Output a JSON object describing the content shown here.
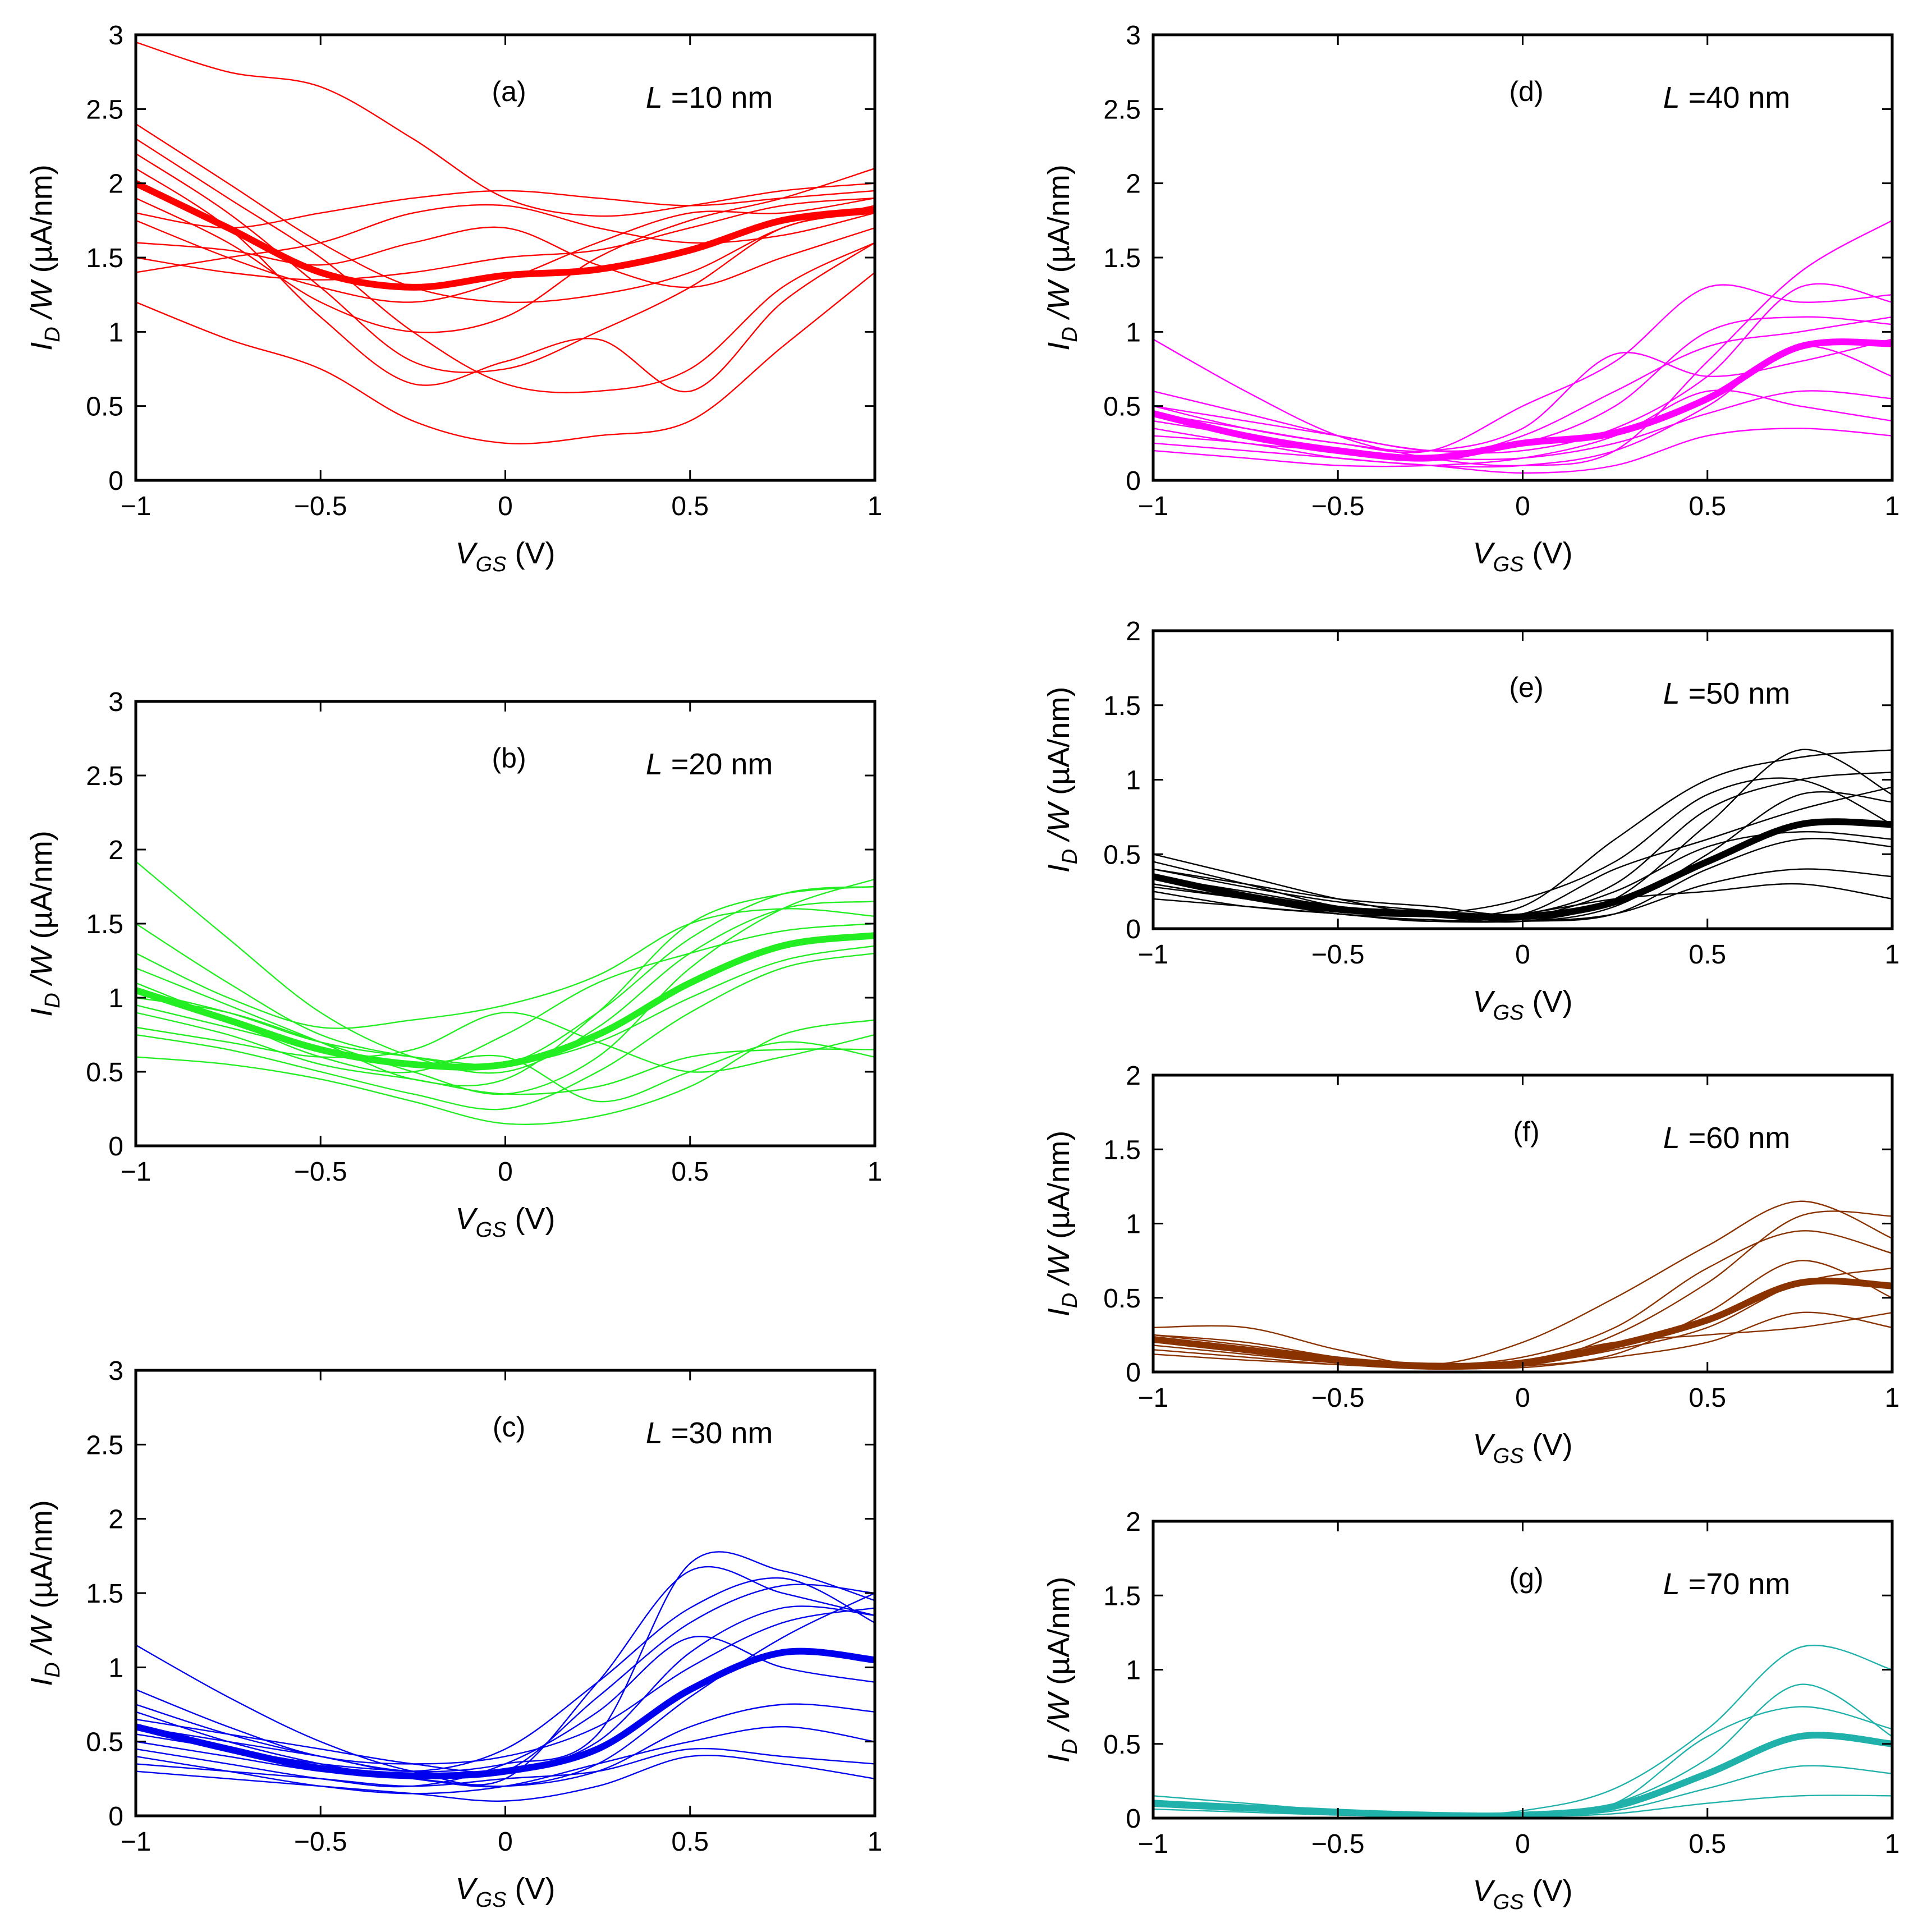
{
  "colors": {
    "a": "#ff0000",
    "b": "#22ee22",
    "c": "#0000ee",
    "d": "#ff00ff",
    "e": "#000000",
    "f": "#8b3300",
    "g": "#20b2aa"
  },
  "chart_data": [
    {
      "id": "a",
      "type": "line",
      "panel_label": "(a)",
      "length_label": "L =10 nm",
      "xlabel": "V_GS (V)",
      "ylabel": "I_D /W (µA/nm)",
      "xlim": [
        -1,
        1
      ],
      "ylim": [
        0,
        3
      ],
      "xticks": [
        "−1",
        "−0.5",
        "0",
        "0.5",
        "1"
      ],
      "yticks": [
        "0",
        "0.5",
        "1",
        "1.5",
        "2",
        "2.5",
        "3"
      ],
      "x": [
        -1,
        -0.75,
        -0.5,
        -0.25,
        0,
        0.25,
        0.5,
        0.75,
        1
      ],
      "mean": [
        2.0,
        1.7,
        1.4,
        1.3,
        1.38,
        1.42,
        1.55,
        1.75,
        1.82
      ],
      "samples": [
        [
          2.95,
          2.75,
          2.65,
          2.3,
          1.9,
          1.78,
          1.85,
          1.95,
          2.0
        ],
        [
          1.2,
          0.95,
          0.75,
          0.4,
          0.25,
          0.3,
          0.4,
          0.9,
          1.4
        ],
        [
          2.3,
          1.9,
          1.5,
          1.0,
          0.65,
          0.6,
          0.75,
          1.3,
          1.6
        ],
        [
          1.8,
          1.7,
          1.8,
          1.9,
          1.95,
          1.9,
          1.85,
          1.9,
          1.95
        ],
        [
          1.5,
          1.4,
          1.35,
          1.4,
          1.5,
          1.55,
          1.7,
          1.85,
          1.9
        ],
        [
          2.2,
          1.8,
          1.3,
          0.8,
          0.75,
          1.0,
          1.3,
          1.7,
          1.8
        ],
        [
          1.4,
          1.5,
          1.6,
          1.8,
          1.85,
          1.7,
          1.6,
          1.65,
          1.8
        ],
        [
          1.9,
          1.6,
          1.2,
          1.0,
          1.1,
          1.5,
          1.75,
          1.9,
          2.1
        ],
        [
          2.4,
          2.0,
          1.6,
          1.3,
          1.2,
          1.25,
          1.4,
          1.7,
          1.85
        ],
        [
          1.6,
          1.55,
          1.45,
          1.6,
          1.7,
          1.45,
          1.3,
          1.5,
          1.7
        ],
        [
          2.1,
          1.7,
          1.1,
          0.65,
          0.8,
          0.95,
          0.6,
          1.2,
          1.6
        ],
        [
          1.75,
          1.5,
          1.3,
          1.2,
          1.35,
          1.6,
          1.8,
          1.8,
          1.9
        ]
      ]
    },
    {
      "id": "b",
      "type": "line",
      "panel_label": "(b)",
      "length_label": "L =20 nm",
      "xlabel": "V_GS (V)",
      "ylabel": "I_D /W (µA/nm)",
      "xlim": [
        -1,
        1
      ],
      "ylim": [
        0,
        3
      ],
      "xticks": [
        "−1",
        "−0.5",
        "0",
        "0.5",
        "1"
      ],
      "yticks": [
        "0",
        "0.5",
        "1",
        "1.5",
        "2",
        "2.5",
        "3"
      ],
      "x": [
        -1,
        -0.75,
        -0.5,
        -0.25,
        0,
        0.25,
        0.5,
        0.75,
        1
      ],
      "mean": [
        1.05,
        0.85,
        0.65,
        0.55,
        0.55,
        0.75,
        1.1,
        1.35,
        1.42
      ],
      "samples": [
        [
          1.92,
          1.4,
          0.9,
          0.6,
          0.5,
          0.8,
          1.3,
          1.6,
          1.65
        ],
        [
          1.5,
          1.1,
          0.75,
          0.6,
          0.55,
          0.9,
          1.4,
          1.7,
          1.75
        ],
        [
          0.6,
          0.55,
          0.45,
          0.3,
          0.15,
          0.2,
          0.4,
          0.75,
          0.85
        ],
        [
          1.0,
          0.9,
          0.7,
          0.5,
          0.35,
          0.6,
          1.2,
          1.6,
          1.8
        ],
        [
          0.8,
          0.7,
          0.6,
          0.65,
          0.9,
          0.7,
          0.5,
          0.6,
          0.75
        ],
        [
          1.2,
          0.95,
          0.7,
          0.45,
          0.45,
          0.9,
          1.5,
          1.7,
          1.75
        ],
        [
          0.9,
          0.75,
          0.55,
          0.45,
          0.35,
          0.4,
          0.6,
          0.65,
          0.65
        ],
        [
          1.1,
          0.85,
          0.6,
          0.5,
          0.75,
          1.1,
          1.3,
          1.45,
          1.5
        ],
        [
          0.75,
          0.65,
          0.5,
          0.35,
          0.25,
          0.5,
          0.9,
          1.2,
          1.3
        ],
        [
          1.3,
          1.0,
          0.8,
          0.85,
          0.95,
          1.15,
          1.5,
          1.6,
          1.55
        ],
        [
          0.95,
          0.8,
          0.65,
          0.55,
          0.6,
          0.3,
          0.5,
          0.7,
          0.6
        ],
        [
          1.05,
          0.9,
          0.7,
          0.6,
          0.55,
          0.7,
          1.0,
          1.25,
          1.35
        ]
      ]
    },
    {
      "id": "c",
      "type": "line",
      "panel_label": "(c)",
      "length_label": "L =30 nm",
      "xlabel": "V_GS (V)",
      "ylabel": "I_D /W (µA/nm)",
      "xlim": [
        -1,
        1
      ],
      "ylim": [
        0,
        3
      ],
      "xticks": [
        "−1",
        "−0.5",
        "0",
        "0.5",
        "1"
      ],
      "yticks": [
        "0",
        "0.5",
        "1",
        "1.5",
        "2",
        "2.5",
        "3"
      ],
      "x": [
        -1,
        -0.75,
        -0.5,
        -0.25,
        0,
        0.25,
        0.5,
        0.75,
        1
      ],
      "mean": [
        0.6,
        0.45,
        0.32,
        0.27,
        0.3,
        0.45,
        0.85,
        1.1,
        1.05
      ],
      "samples": [
        [
          1.15,
          0.8,
          0.5,
          0.3,
          0.25,
          0.9,
          1.65,
          1.5,
          1.35
        ],
        [
          0.75,
          0.55,
          0.4,
          0.3,
          0.35,
          0.55,
          1.7,
          1.65,
          1.45
        ],
        [
          0.4,
          0.3,
          0.2,
          0.15,
          0.2,
          0.35,
          0.5,
          0.6,
          0.5
        ],
        [
          0.55,
          0.45,
          0.35,
          0.3,
          0.3,
          0.8,
          1.3,
          1.55,
          1.5
        ],
        [
          0.3,
          0.25,
          0.2,
          0.15,
          0.1,
          0.2,
          0.4,
          0.35,
          0.25
        ],
        [
          0.85,
          0.6,
          0.4,
          0.35,
          0.4,
          0.6,
          1.0,
          1.3,
          1.4
        ],
        [
          0.5,
          0.4,
          0.3,
          0.25,
          0.2,
          0.3,
          0.6,
          0.75,
          0.7
        ],
        [
          0.65,
          0.55,
          0.45,
          0.35,
          0.3,
          0.5,
          1.1,
          1.4,
          1.35
        ],
        [
          0.45,
          0.35,
          0.25,
          0.2,
          0.35,
          0.7,
          1.2,
          1.0,
          0.9
        ],
        [
          0.7,
          0.5,
          0.35,
          0.25,
          0.2,
          0.35,
          0.8,
          1.2,
          1.5
        ],
        [
          0.35,
          0.3,
          0.25,
          0.2,
          0.25,
          0.3,
          0.45,
          0.4,
          0.35
        ],
        [
          0.6,
          0.5,
          0.4,
          0.3,
          0.45,
          0.9,
          1.4,
          1.6,
          1.3
        ]
      ]
    },
    {
      "id": "d",
      "type": "line",
      "panel_label": "(d)",
      "length_label": "L =40 nm",
      "xlabel": "V_GS (V)",
      "ylabel": "I_D /W (µA/nm)",
      "xlim": [
        -1,
        1
      ],
      "ylim": [
        0,
        3
      ],
      "xticks": [
        "−1",
        "−0.5",
        "0",
        "0.5",
        "1"
      ],
      "yticks": [
        "0",
        "0.5",
        "1",
        "1.5",
        "2",
        "2.5",
        "3"
      ],
      "x": [
        -1,
        -0.75,
        -0.5,
        -0.25,
        0,
        0.25,
        0.5,
        0.75,
        1
      ],
      "mean": [
        0.45,
        0.3,
        0.2,
        0.15,
        0.25,
        0.32,
        0.55,
        0.9,
        0.92
      ],
      "samples": [
        [
          0.95,
          0.6,
          0.3,
          0.15,
          0.1,
          0.2,
          0.8,
          1.4,
          1.75
        ],
        [
          0.5,
          0.35,
          0.25,
          0.2,
          0.5,
          0.8,
          1.3,
          1.2,
          1.25
        ],
        [
          0.3,
          0.25,
          0.15,
          0.1,
          0.05,
          0.1,
          0.3,
          0.35,
          0.3
        ],
        [
          0.4,
          0.3,
          0.2,
          0.15,
          0.3,
          0.6,
          0.9,
          1.0,
          1.1
        ],
        [
          0.25,
          0.2,
          0.15,
          0.1,
          0.1,
          0.2,
          0.5,
          0.9,
          0.7
        ],
        [
          0.6,
          0.45,
          0.3,
          0.2,
          0.2,
          0.35,
          0.7,
          1.3,
          1.2
        ],
        [
          0.35,
          0.25,
          0.2,
          0.15,
          0.15,
          0.25,
          0.45,
          0.6,
          0.55
        ],
        [
          0.45,
          0.35,
          0.25,
          0.2,
          0.35,
          0.85,
          0.7,
          0.8,
          0.95
        ],
        [
          0.2,
          0.15,
          0.1,
          0.1,
          0.15,
          0.3,
          0.6,
          0.5,
          0.4
        ],
        [
          0.5,
          0.4,
          0.3,
          0.2,
          0.25,
          0.5,
          1.0,
          1.1,
          1.05
        ]
      ]
    },
    {
      "id": "e",
      "type": "line",
      "panel_label": "(e)",
      "length_label": "L =50 nm",
      "xlabel": "V_GS (V)",
      "ylabel": "I_D /W (µA/nm)",
      "xlim": [
        -1,
        1
      ],
      "ylim": [
        0,
        2
      ],
      "xticks": [
        "−1",
        "−0.5",
        "0",
        "0.5",
        "1"
      ],
      "yticks": [
        "0",
        "0.5",
        "1",
        "1.5",
        "2"
      ],
      "x": [
        -1,
        -0.75,
        -0.5,
        -0.25,
        0,
        0.25,
        0.5,
        0.75,
        1
      ],
      "mean": [
        0.35,
        0.22,
        0.13,
        0.1,
        0.08,
        0.18,
        0.45,
        0.7,
        0.7
      ],
      "samples": [
        [
          0.5,
          0.35,
          0.2,
          0.1,
          0.15,
          0.6,
          1.0,
          1.15,
          1.2
        ],
        [
          0.3,
          0.2,
          0.1,
          0.08,
          0.05,
          0.2,
          0.7,
          1.2,
          0.9
        ],
        [
          0.4,
          0.3,
          0.2,
          0.15,
          0.1,
          0.3,
          0.8,
          1.0,
          1.05
        ],
        [
          0.25,
          0.15,
          0.1,
          0.05,
          0.05,
          0.1,
          0.3,
          0.4,
          0.35
        ],
        [
          0.45,
          0.3,
          0.15,
          0.1,
          0.1,
          0.4,
          0.6,
          0.8,
          0.95
        ],
        [
          0.35,
          0.25,
          0.15,
          0.1,
          0.05,
          0.15,
          0.5,
          0.9,
          0.85
        ],
        [
          0.2,
          0.15,
          0.1,
          0.05,
          0.1,
          0.2,
          0.25,
          0.3,
          0.2
        ],
        [
          0.3,
          0.2,
          0.12,
          0.1,
          0.2,
          0.45,
          0.9,
          1.0,
          0.7
        ],
        [
          0.4,
          0.28,
          0.18,
          0.12,
          0.08,
          0.25,
          0.55,
          0.65,
          0.6
        ],
        [
          0.28,
          0.2,
          0.1,
          0.06,
          0.05,
          0.1,
          0.4,
          0.6,
          0.55
        ]
      ]
    },
    {
      "id": "f",
      "type": "line",
      "panel_label": "(f)",
      "length_label": "L =60 nm",
      "xlabel": "V_GS (V)",
      "ylabel": "I_D /W (µA/nm)",
      "xlim": [
        -1,
        1
      ],
      "ylim": [
        0,
        2
      ],
      "xticks": [
        "−1",
        "−0.5",
        "0",
        "0.5",
        "1"
      ],
      "yticks": [
        "0",
        "0.5",
        "1",
        "1.5",
        "2"
      ],
      "x": [
        -1,
        -0.75,
        -0.5,
        -0.25,
        0,
        0.25,
        0.5,
        0.75,
        1
      ],
      "mean": [
        0.22,
        0.15,
        0.08,
        0.04,
        0.06,
        0.18,
        0.35,
        0.6,
        0.58
      ],
      "samples": [
        [
          0.3,
          0.3,
          0.15,
          0.05,
          0.2,
          0.5,
          0.85,
          1.15,
          0.9
        ],
        [
          0.25,
          0.2,
          0.1,
          0.05,
          0.05,
          0.25,
          0.6,
          1.05,
          1.05
        ],
        [
          0.15,
          0.1,
          0.05,
          0.03,
          0.03,
          0.1,
          0.2,
          0.4,
          0.3
        ],
        [
          0.2,
          0.15,
          0.08,
          0.05,
          0.1,
          0.3,
          0.7,
          0.95,
          0.8
        ],
        [
          0.18,
          0.12,
          0.06,
          0.03,
          0.05,
          0.15,
          0.3,
          0.6,
          0.7
        ],
        [
          0.25,
          0.18,
          0.1,
          0.05,
          0.08,
          0.2,
          0.25,
          0.3,
          0.4
        ],
        [
          0.12,
          0.08,
          0.05,
          0.02,
          0.04,
          0.12,
          0.4,
          0.75,
          0.5
        ]
      ]
    },
    {
      "id": "g",
      "type": "line",
      "panel_label": "(g)",
      "length_label": "L =70 nm",
      "xlabel": "V_GS (V)",
      "ylabel": "I_D /W (µA/nm)",
      "xlim": [
        -1,
        1
      ],
      "ylim": [
        0,
        2
      ],
      "xticks": [
        "−1",
        "−0.5",
        "0",
        "0.5",
        "1"
      ],
      "yticks": [
        "0",
        "0.5",
        "1",
        "1.5",
        "2"
      ],
      "x": [
        -1,
        -0.75,
        -0.5,
        -0.25,
        0,
        0.25,
        0.5,
        0.75,
        1
      ],
      "mean": [
        0.1,
        0.07,
        0.04,
        0.02,
        0.02,
        0.08,
        0.3,
        0.55,
        0.5
      ],
      "samples": [
        [
          0.15,
          0.1,
          0.05,
          0.02,
          0.05,
          0.2,
          0.6,
          1.15,
          1.0
        ],
        [
          0.12,
          0.08,
          0.04,
          0.02,
          0.02,
          0.1,
          0.4,
          0.9,
          0.55
        ],
        [
          0.08,
          0.05,
          0.03,
          0.01,
          0.01,
          0.05,
          0.2,
          0.35,
          0.3
        ],
        [
          0.1,
          0.08,
          0.05,
          0.02,
          0.02,
          0.1,
          0.55,
          0.75,
          0.6
        ],
        [
          0.06,
          0.04,
          0.02,
          0.01,
          0.01,
          0.03,
          0.1,
          0.15,
          0.15
        ]
      ]
    }
  ]
}
